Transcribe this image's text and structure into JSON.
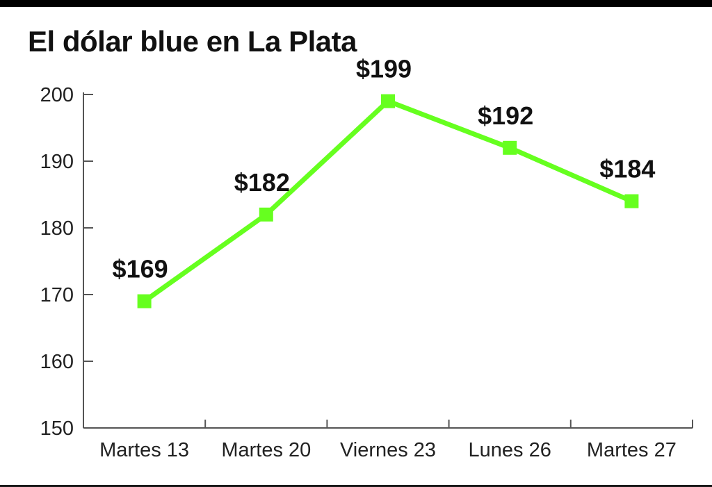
{
  "title": "El dólar blue en La Plata",
  "colors": {
    "line": "#66ff1f",
    "marker": "#66ff1f",
    "axis": "#555555",
    "text": "#111111"
  },
  "chart_data": {
    "type": "line",
    "title": "El dólar blue en La Plata",
    "xlabel": "",
    "ylabel": "",
    "categories": [
      "Martes 13",
      "Martes 20",
      "Viernes 23",
      "Lunes 26",
      "Martes 27"
    ],
    "values": [
      169,
      182,
      199,
      192,
      184
    ],
    "data_labels": [
      "$169",
      "$182",
      "$199",
      "$192",
      "$184"
    ],
    "yticks": [
      150,
      160,
      170,
      180,
      190,
      200
    ],
    "ylim": [
      150,
      200
    ],
    "grid": false,
    "legend": "none",
    "marker": "square"
  }
}
